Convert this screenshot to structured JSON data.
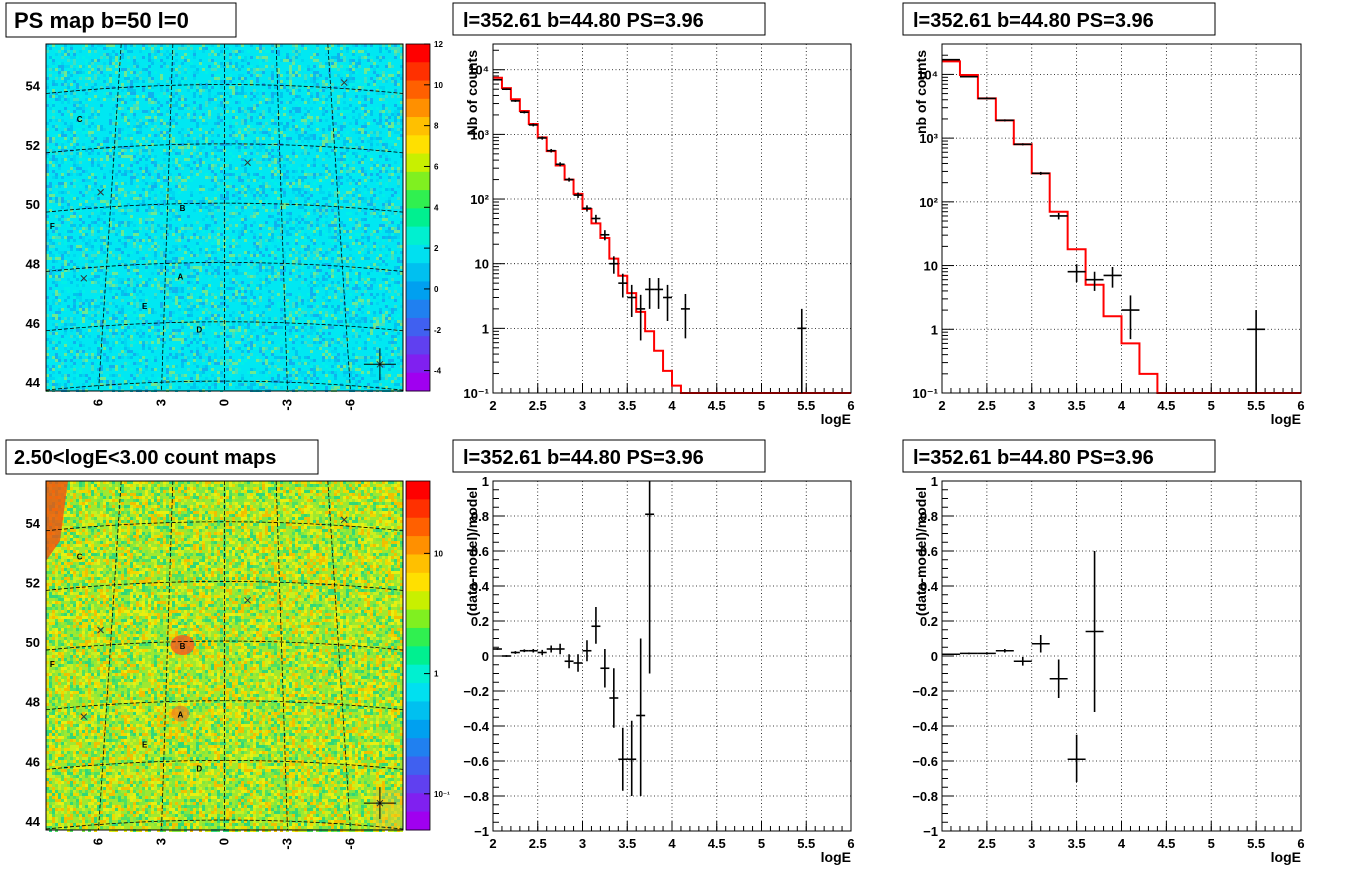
{
  "charts": {
    "map1": {
      "title": "PS map b=50 l=0",
      "y_ticks": [
        "54",
        "52",
        "50",
        "48",
        "46",
        "44"
      ],
      "x_ticks": [
        "6",
        "3",
        "0",
        "-3",
        "-6"
      ],
      "color_ticks": [
        "12",
        "10",
        "8",
        "6",
        "4",
        "2",
        "0",
        "-2",
        "-4"
      ],
      "sources": [
        "A",
        "B",
        "C",
        "D",
        "E",
        "F"
      ],
      "colors": {
        "background": "#00e8f2"
      }
    },
    "map2": {
      "title": "2.50<logE<3.00 count maps",
      "y_ticks": [
        "54",
        "52",
        "50",
        "48",
        "46",
        "44"
      ],
      "x_ticks": [
        "6",
        "3",
        "0",
        "-3",
        "-6"
      ],
      "color_ticks": [
        "10",
        "1",
        "10⁻¹"
      ],
      "sources": [
        "A",
        "B",
        "C",
        "D",
        "E",
        "F"
      ],
      "colors": {
        "background": "#9fe830"
      }
    },
    "spec1": {
      "title": "l=352.61 b=44.80 PS=3.96",
      "xlabel": "logE",
      "ylabel": "Nb of counts",
      "x_ticks": [
        "2",
        "2.5",
        "3",
        "3.5",
        "4",
        "4.5",
        "5",
        "5.5",
        "6"
      ],
      "y_ticks": [
        "10⁻¹",
        "1",
        "10",
        "10²",
        "10³",
        "10⁴"
      ]
    },
    "spec2": {
      "title": "l=352.61 b=44.80 PS=3.96",
      "xlabel": "logE",
      "ylabel": "nb of counts",
      "x_ticks": [
        "2",
        "2.5",
        "3",
        "3.5",
        "4",
        "4.5",
        "5",
        "5.5",
        "6"
      ],
      "y_ticks": [
        "10⁻¹",
        "1",
        "10",
        "10²",
        "10³",
        "10⁴"
      ]
    },
    "res1": {
      "title": "l=352.61 b=44.80 PS=3.96",
      "xlabel": "logE",
      "ylabel": "(data-model)/model",
      "x_ticks": [
        "2",
        "2.5",
        "3",
        "3.5",
        "4",
        "4.5",
        "5",
        "5.5",
        "6"
      ],
      "y_ticks": [
        "1",
        "0.8",
        "0.6",
        "0.4",
        "0.2",
        "0",
        "−0.2",
        "−0.4",
        "−0.6",
        "−0.8",
        "−1"
      ]
    },
    "res2": {
      "title": "l=352.61 b=44.80 PS=3.96",
      "xlabel": "logE",
      "ylabel": "(data-model)/model",
      "x_ticks": [
        "2",
        "2.5",
        "3",
        "3.5",
        "4",
        "4.5",
        "5",
        "5.5",
        "6"
      ],
      "y_ticks": [
        "1",
        "0.8",
        "0.6",
        "0.4",
        "0.2",
        "0",
        "−0.2",
        "−0.4",
        "−0.6",
        "−0.8",
        "−1"
      ]
    }
  },
  "chart_data": [
    {
      "type": "heatmap",
      "title": "PS map b=50 l=0",
      "xlim": [
        8.5,
        -8.5
      ],
      "ylim": [
        43.7,
        55.4
      ],
      "zlim": [
        -5,
        12
      ],
      "sources": [
        {
          "name": "C",
          "x": 6.9,
          "y": 52.9
        },
        {
          "name": "B",
          "x": 2.0,
          "y": 49.9
        },
        {
          "name": "F",
          "x": 8.2,
          "y": 49.3
        },
        {
          "name": "A",
          "x": 2.1,
          "y": 47.6
        },
        {
          "name": "E",
          "x": 3.8,
          "y": 46.6
        },
        {
          "name": "D",
          "x": 1.2,
          "y": 45.8
        }
      ],
      "markers": [
        {
          "x": -5.7,
          "y": 54.1
        },
        {
          "x": -1.1,
          "y": 51.4
        },
        {
          "x": 5.9,
          "y": 50.4
        },
        {
          "x": 6.7,
          "y": 47.5
        },
        {
          "x": -7.4,
          "y": 44.6
        }
      ]
    },
    {
      "type": "heatmap",
      "title": "2.50<logE<3.00 count maps",
      "xlim": [
        8.5,
        -8.5
      ],
      "ylim": [
        43.7,
        55.4
      ],
      "zlim": [
        0.05,
        40
      ],
      "zscale": "log",
      "sources": [
        {
          "name": "C",
          "x": 6.9,
          "y": 52.9
        },
        {
          "name": "B",
          "x": 2.0,
          "y": 49.9
        },
        {
          "name": "F",
          "x": 8.2,
          "y": 49.3
        },
        {
          "name": "A",
          "x": 2.1,
          "y": 47.6
        },
        {
          "name": "E",
          "x": 3.8,
          "y": 46.6
        },
        {
          "name": "D",
          "x": 1.2,
          "y": 45.8
        }
      ],
      "markers": [
        {
          "x": -5.7,
          "y": 54.1
        },
        {
          "x": -1.1,
          "y": 51.4
        },
        {
          "x": 5.9,
          "y": 50.4
        },
        {
          "x": 6.7,
          "y": 47.5
        },
        {
          "x": -7.4,
          "y": 44.6
        }
      ]
    },
    {
      "type": "line",
      "title": "l=352.61 b=44.80 PS=3.96",
      "xlabel": "logE",
      "ylabel": "Nb of counts",
      "xlim": [
        2,
        6
      ],
      "ylim": [
        0.1,
        25000
      ],
      "yscale": "log",
      "grid": true,
      "model": {
        "edges": [
          2.0,
          2.1,
          2.2,
          2.3,
          2.4,
          2.5,
          2.6,
          2.7,
          2.8,
          2.9,
          3.0,
          3.1,
          3.2,
          3.3,
          3.4,
          3.5,
          3.6,
          3.7,
          3.8,
          3.9,
          4.0,
          4.1,
          4.2,
          6.0
        ],
        "values": [
          7500,
          5200,
          3500,
          2300,
          1450,
          900,
          550,
          330,
          200,
          120,
          70,
          42,
          25,
          12,
          6.5,
          3.5,
          1.8,
          0.9,
          0.45,
          0.22,
          0.13,
          0.09,
          0.05
        ]
      },
      "points": [
        {
          "x": 2.05,
          "y": 7000,
          "lo": 6800,
          "hi": 7200
        },
        {
          "x": 2.15,
          "y": 5000,
          "lo": 4850,
          "hi": 5150
        },
        {
          "x": 2.25,
          "y": 3300,
          "lo": 3180,
          "hi": 3420
        },
        {
          "x": 2.35,
          "y": 2200,
          "lo": 2110,
          "hi": 2290
        },
        {
          "x": 2.45,
          "y": 1400,
          "lo": 1330,
          "hi": 1470
        },
        {
          "x": 2.55,
          "y": 880,
          "lo": 830,
          "hi": 930
        },
        {
          "x": 2.65,
          "y": 560,
          "lo": 525,
          "hi": 595
        },
        {
          "x": 2.75,
          "y": 345,
          "lo": 320,
          "hi": 370
        },
        {
          "x": 2.85,
          "y": 200,
          "lo": 186,
          "hi": 214
        },
        {
          "x": 2.95,
          "y": 115,
          "lo": 104,
          "hi": 126
        },
        {
          "x": 3.05,
          "y": 72,
          "lo": 64,
          "hi": 80
        },
        {
          "x": 3.15,
          "y": 50,
          "lo": 43,
          "hi": 57
        },
        {
          "x": 3.25,
          "y": 28,
          "lo": 23,
          "hi": 33
        },
        {
          "x": 3.35,
          "y": 10,
          "lo": 7,
          "hi": 13
        },
        {
          "x": 3.45,
          "y": 5,
          "lo": 3,
          "hi": 7
        },
        {
          "x": 3.55,
          "y": 3,
          "lo": 1.5,
          "hi": 4.7
        },
        {
          "x": 3.65,
          "y": 2,
          "lo": 0.65,
          "hi": 3.3
        },
        {
          "x": 3.75,
          "y": 4,
          "lo": 2,
          "hi": 6
        },
        {
          "x": 3.85,
          "y": 4,
          "lo": 2,
          "hi": 6
        },
        {
          "x": 3.95,
          "y": 3,
          "lo": 1.3,
          "hi": 4.7
        },
        {
          "x": 4.15,
          "y": 2,
          "lo": 0.7,
          "hi": 3.4
        },
        {
          "x": 5.45,
          "y": 1,
          "lo": 0.1,
          "hi": 2
        }
      ]
    },
    {
      "type": "line",
      "title": "l=352.61 b=44.80 PS=3.96",
      "xlabel": "logE",
      "ylabel": "nb of counts",
      "xlim": [
        2,
        6
      ],
      "ylim": [
        0.1,
        30000
      ],
      "yscale": "log",
      "grid": true,
      "model": {
        "edges": [
          2.0,
          2.2,
          2.4,
          2.6,
          2.8,
          3.0,
          3.2,
          3.4,
          3.6,
          3.8,
          4.0,
          4.2,
          4.4,
          6.0
        ],
        "values": [
          16000,
          9800,
          4200,
          1900,
          800,
          280,
          70,
          18,
          5,
          1.6,
          0.6,
          0.2,
          0.1
        ]
      },
      "points": [
        {
          "x": 2.1,
          "y": 17000,
          "lo": 16700,
          "hi": 17300
        },
        {
          "x": 2.3,
          "y": 9200,
          "lo": 9000,
          "hi": 9400
        },
        {
          "x": 2.5,
          "y": 4200,
          "lo": 4080,
          "hi": 4320
        },
        {
          "x": 2.7,
          "y": 1900,
          "lo": 1830,
          "hi": 1970
        },
        {
          "x": 2.9,
          "y": 800,
          "lo": 770,
          "hi": 830
        },
        {
          "x": 3.1,
          "y": 280,
          "lo": 265,
          "hi": 295
        },
        {
          "x": 3.3,
          "y": 60,
          "lo": 53,
          "hi": 67
        },
        {
          "x": 3.5,
          "y": 8,
          "lo": 5.5,
          "hi": 10.5
        },
        {
          "x": 3.7,
          "y": 6,
          "lo": 4,
          "hi": 8
        },
        {
          "x": 3.9,
          "y": 7,
          "lo": 4.5,
          "hi": 9.5
        },
        {
          "x": 4.1,
          "y": 2,
          "lo": 0.7,
          "hi": 3.4
        },
        {
          "x": 5.5,
          "y": 1,
          "lo": 0.1,
          "hi": 2
        }
      ]
    },
    {
      "type": "scatter",
      "title": "l=352.61 b=44.80 PS=3.96",
      "xlabel": "logE",
      "ylabel": "(data-model)/model",
      "xlim": [
        2,
        6
      ],
      "ylim": [
        -1,
        1
      ],
      "grid": true,
      "points": [
        {
          "x": 2.05,
          "y": 0.04,
          "lo": 0.035,
          "hi": 0.045
        },
        {
          "x": 2.15,
          "y": 0.0,
          "lo": -0.005,
          "hi": 0.005
        },
        {
          "x": 2.25,
          "y": 0.02,
          "lo": 0.012,
          "hi": 0.028
        },
        {
          "x": 2.35,
          "y": 0.03,
          "lo": 0.022,
          "hi": 0.038
        },
        {
          "x": 2.45,
          "y": 0.03,
          "lo": 0.02,
          "hi": 0.04
        },
        {
          "x": 2.55,
          "y": 0.02,
          "lo": 0.005,
          "hi": 0.035
        },
        {
          "x": 2.65,
          "y": 0.04,
          "lo": 0.02,
          "hi": 0.06
        },
        {
          "x": 2.75,
          "y": 0.04,
          "lo": 0.01,
          "hi": 0.07
        },
        {
          "x": 2.85,
          "y": -0.03,
          "lo": -0.07,
          "hi": 0.01
        },
        {
          "x": 2.95,
          "y": -0.04,
          "lo": -0.09,
          "hi": 0.01
        },
        {
          "x": 3.05,
          "y": 0.03,
          "lo": -0.03,
          "hi": 0.09
        },
        {
          "x": 3.15,
          "y": 0.17,
          "lo": 0.07,
          "hi": 0.28
        },
        {
          "x": 3.25,
          "y": -0.07,
          "lo": -0.18,
          "hi": 0.04
        },
        {
          "x": 3.35,
          "y": -0.24,
          "lo": -0.41,
          "hi": -0.07
        },
        {
          "x": 3.45,
          "y": -0.59,
          "lo": -0.77,
          "hi": -0.41
        },
        {
          "x": 3.55,
          "y": -0.59,
          "lo": -0.8,
          "hi": -0.37
        },
        {
          "x": 3.65,
          "y": -0.34,
          "lo": -0.8,
          "hi": 0.1
        },
        {
          "x": 3.75,
          "y": 0.81,
          "lo": -0.1,
          "hi": 1.0
        }
      ]
    },
    {
      "type": "scatter",
      "title": "l=352.61 b=44.80 PS=3.96",
      "xlabel": "logE",
      "ylabel": "(data-model)/model",
      "xlim": [
        2,
        6
      ],
      "ylim": [
        -1,
        1
      ],
      "grid": true,
      "points": [
        {
          "x": 2.1,
          "y": 0.01,
          "lo": 0.006,
          "hi": 0.014
        },
        {
          "x": 2.3,
          "y": 0.015,
          "lo": 0.01,
          "hi": 0.02
        },
        {
          "x": 2.5,
          "y": 0.015,
          "lo": 0.008,
          "hi": 0.022
        },
        {
          "x": 2.7,
          "y": 0.03,
          "lo": 0.02,
          "hi": 0.04
        },
        {
          "x": 2.9,
          "y": -0.03,
          "lo": -0.055,
          "hi": -0.005
        },
        {
          "x": 3.1,
          "y": 0.07,
          "lo": 0.02,
          "hi": 0.12
        },
        {
          "x": 3.3,
          "y": -0.13,
          "lo": -0.24,
          "hi": -0.02
        },
        {
          "x": 3.5,
          "y": -0.59,
          "lo": -0.72,
          "hi": -0.45
        },
        {
          "x": 3.7,
          "y": 0.14,
          "lo": -0.32,
          "hi": 0.6
        }
      ]
    }
  ]
}
